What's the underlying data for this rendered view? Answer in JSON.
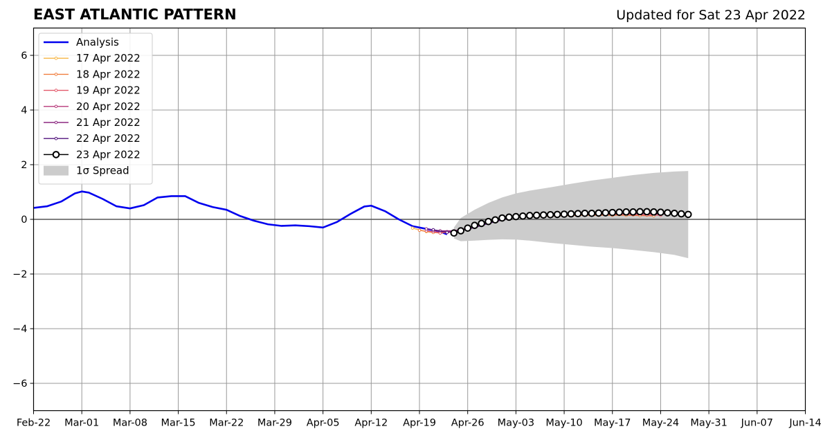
{
  "chart_data": {
    "type": "line",
    "title": "EAST ATLANTIC PATTERN",
    "subtitle": "Updated for Sat 23 Apr 2022",
    "xlabel": "",
    "ylabel": "",
    "ylim": [
      -7,
      7
    ],
    "xlim": [
      "2022-02-22",
      "2022-06-14"
    ],
    "grid": true,
    "legend_position": "top-left",
    "x_tick_labels": [
      "Feb-22",
      "Mar-01",
      "Mar-08",
      "Mar-15",
      "Mar-22",
      "Mar-29",
      "Apr-05",
      "Apr-12",
      "Apr-19",
      "Apr-26",
      "May-03",
      "May-10",
      "May-17",
      "May-24",
      "May-31",
      "Jun-07",
      "Jun-14"
    ],
    "x_tick_dates": [
      "2022-02-22",
      "2022-03-01",
      "2022-03-08",
      "2022-03-15",
      "2022-03-22",
      "2022-03-29",
      "2022-04-05",
      "2022-04-12",
      "2022-04-19",
      "2022-04-26",
      "2022-05-03",
      "2022-05-10",
      "2022-05-17",
      "2022-05-24",
      "2022-05-31",
      "2022-06-07",
      "2022-06-14"
    ],
    "y_ticks": [
      -6,
      -4,
      -2,
      0,
      2,
      4,
      6
    ],
    "y_tick_labels": [
      "−6",
      "−4",
      "−2",
      "0",
      "2",
      "4",
      "6"
    ],
    "analysis": {
      "name": "Analysis",
      "color": "#0000ee",
      "x": [
        "2022-02-22",
        "2022-02-24",
        "2022-02-26",
        "2022-02-28",
        "2022-03-01",
        "2022-03-02",
        "2022-03-04",
        "2022-03-06",
        "2022-03-08",
        "2022-03-10",
        "2022-03-12",
        "2022-03-14",
        "2022-03-16",
        "2022-03-18",
        "2022-03-20",
        "2022-03-22",
        "2022-03-24",
        "2022-03-26",
        "2022-03-28",
        "2022-03-30",
        "2022-04-01",
        "2022-04-03",
        "2022-04-05",
        "2022-04-07",
        "2022-04-09",
        "2022-04-11",
        "2022-04-12",
        "2022-04-14",
        "2022-04-16",
        "2022-04-18",
        "2022-04-20",
        "2022-04-22",
        "2022-04-23"
      ],
      "y": [
        0.42,
        0.48,
        0.65,
        0.95,
        1.02,
        0.98,
        0.75,
        0.48,
        0.4,
        0.52,
        0.8,
        0.85,
        0.85,
        0.6,
        0.45,
        0.35,
        0.12,
        -0.05,
        -0.18,
        -0.24,
        -0.22,
        -0.25,
        -0.3,
        -0.1,
        0.2,
        0.47,
        0.5,
        0.3,
        0.0,
        -0.25,
        -0.35,
        -0.45,
        -0.55
      ]
    },
    "forecasts": [
      {
        "name": "17 Apr 2022",
        "color": "#f7b543",
        "x": [
          "2022-04-18",
          "2022-04-20",
          "2022-04-22",
          "2022-04-24",
          "2022-04-26",
          "2022-04-28",
          "2022-04-30",
          "2022-05-02",
          "2022-05-04",
          "2022-05-06",
          "2022-05-08",
          "2022-05-10",
          "2022-05-12",
          "2022-05-14",
          "2022-05-16",
          "2022-05-18",
          "2022-05-20",
          "2022-05-22"
        ],
        "y": [
          -0.32,
          -0.45,
          -0.5,
          -0.45,
          -0.35,
          -0.2,
          -0.05,
          0.05,
          0.1,
          0.12,
          0.14,
          0.15,
          0.15,
          0.16,
          0.17,
          0.17,
          0.16,
          0.15
        ]
      },
      {
        "name": "18 Apr 2022",
        "color": "#f07e3f",
        "x": [
          "2022-04-19",
          "2022-04-21",
          "2022-04-23",
          "2022-04-25",
          "2022-04-27",
          "2022-04-29",
          "2022-05-01",
          "2022-05-03",
          "2022-05-05",
          "2022-05-07",
          "2022-05-09",
          "2022-05-11",
          "2022-05-13",
          "2022-05-15",
          "2022-05-17",
          "2022-05-19",
          "2022-05-21",
          "2022-05-23"
        ],
        "y": [
          -0.4,
          -0.48,
          -0.48,
          -0.4,
          -0.28,
          -0.12,
          0.0,
          0.07,
          0.1,
          0.12,
          0.13,
          0.14,
          0.15,
          0.15,
          0.15,
          0.15,
          0.14,
          0.13
        ]
      },
      {
        "name": "19 Apr 2022",
        "color": "#e3586a",
        "x": [
          "2022-04-20",
          "2022-04-22",
          "2022-04-24",
          "2022-04-26",
          "2022-04-28",
          "2022-04-30",
          "2022-05-02",
          "2022-05-04",
          "2022-05-06",
          "2022-05-08",
          "2022-05-10",
          "2022-05-12",
          "2022-05-14",
          "2022-05-16",
          "2022-05-18",
          "2022-05-20",
          "2022-05-22",
          "2022-05-24"
        ],
        "y": [
          -0.42,
          -0.5,
          -0.45,
          -0.33,
          -0.18,
          -0.05,
          0.05,
          0.1,
          0.13,
          0.15,
          0.16,
          0.17,
          0.18,
          0.18,
          0.18,
          0.17,
          0.16,
          0.15
        ]
      },
      {
        "name": "20 Apr 2022",
        "color": "#b73779",
        "x": [
          "2022-04-21",
          "2022-04-23",
          "2022-04-25",
          "2022-04-27",
          "2022-04-29",
          "2022-05-01",
          "2022-05-03",
          "2022-05-05",
          "2022-05-07",
          "2022-05-09",
          "2022-05-11",
          "2022-05-13",
          "2022-05-15",
          "2022-05-17",
          "2022-05-19",
          "2022-05-21",
          "2022-05-23",
          "2022-05-25"
        ],
        "y": [
          -0.42,
          -0.45,
          -0.38,
          -0.25,
          -0.1,
          0.02,
          0.1,
          0.14,
          0.17,
          0.19,
          0.2,
          0.21,
          0.22,
          0.22,
          0.22,
          0.21,
          0.2,
          0.19
        ]
      },
      {
        "name": "21 Apr 2022",
        "color": "#8c2981",
        "x": [
          "2022-04-20",
          "2022-04-22",
          "2022-04-24",
          "2022-04-26",
          "2022-04-28",
          "2022-04-30",
          "2022-05-02",
          "2022-05-04",
          "2022-05-06",
          "2022-05-08",
          "2022-05-10",
          "2022-05-12",
          "2022-05-14",
          "2022-05-16",
          "2022-05-18",
          "2022-05-20",
          "2022-05-22",
          "2022-05-24",
          "2022-05-26"
        ],
        "y": [
          -0.35,
          -0.42,
          -0.42,
          -0.32,
          -0.18,
          -0.05,
          0.05,
          0.12,
          0.16,
          0.19,
          0.21,
          0.22,
          0.23,
          0.24,
          0.24,
          0.24,
          0.23,
          0.22,
          0.21
        ]
      },
      {
        "name": "22 Apr 2022",
        "color": "#51127c",
        "x": [
          "2022-04-21",
          "2022-04-23",
          "2022-04-25",
          "2022-04-27",
          "2022-04-29",
          "2022-05-01",
          "2022-05-03",
          "2022-05-05",
          "2022-05-07",
          "2022-05-09",
          "2022-05-11",
          "2022-05-13",
          "2022-05-15",
          "2022-05-17",
          "2022-05-19",
          "2022-05-21",
          "2022-05-23",
          "2022-05-25",
          "2022-05-27"
        ],
        "y": [
          -0.38,
          -0.48,
          -0.42,
          -0.3,
          -0.15,
          -0.02,
          0.08,
          0.13,
          0.17,
          0.19,
          0.21,
          0.22,
          0.23,
          0.24,
          0.24,
          0.24,
          0.23,
          0.22,
          0.21
        ]
      },
      {
        "name": "23 Apr 2022",
        "color": "#000000",
        "marker": "open-circle",
        "x": [
          "2022-04-24",
          "2022-04-25",
          "2022-04-26",
          "2022-04-27",
          "2022-04-28",
          "2022-04-29",
          "2022-04-30",
          "2022-05-01",
          "2022-05-02",
          "2022-05-03",
          "2022-05-04",
          "2022-05-05",
          "2022-05-06",
          "2022-05-07",
          "2022-05-08",
          "2022-05-09",
          "2022-05-10",
          "2022-05-11",
          "2022-05-12",
          "2022-05-13",
          "2022-05-14",
          "2022-05-15",
          "2022-05-16",
          "2022-05-17",
          "2022-05-18",
          "2022-05-19",
          "2022-05-20",
          "2022-05-21",
          "2022-05-22",
          "2022-05-23",
          "2022-05-24",
          "2022-05-25",
          "2022-05-26",
          "2022-05-27",
          "2022-05-28"
        ],
        "y": [
          -0.5,
          -0.42,
          -0.32,
          -0.22,
          -0.15,
          -0.08,
          -0.02,
          0.05,
          0.08,
          0.1,
          0.12,
          0.14,
          0.15,
          0.16,
          0.17,
          0.18,
          0.19,
          0.2,
          0.21,
          0.22,
          0.22,
          0.23,
          0.24,
          0.25,
          0.26,
          0.27,
          0.27,
          0.28,
          0.28,
          0.27,
          0.26,
          0.24,
          0.22,
          0.2,
          0.18
        ]
      }
    ],
    "spread": {
      "name": "1σ Spread",
      "color": "#cccccc",
      "x": [
        "2022-04-24",
        "2022-04-25",
        "2022-04-27",
        "2022-04-29",
        "2022-05-01",
        "2022-05-03",
        "2022-05-05",
        "2022-05-08",
        "2022-05-11",
        "2022-05-14",
        "2022-05-17",
        "2022-05-20",
        "2022-05-23",
        "2022-05-26",
        "2022-05-28"
      ],
      "upper": [
        -0.3,
        0.05,
        0.35,
        0.6,
        0.8,
        0.95,
        1.05,
        1.17,
        1.3,
        1.42,
        1.52,
        1.62,
        1.7,
        1.75,
        1.77
      ],
      "lower": [
        -0.7,
        -0.8,
        -0.78,
        -0.75,
        -0.73,
        -0.74,
        -0.78,
        -0.86,
        -0.93,
        -1.0,
        -1.05,
        -1.12,
        -1.2,
        -1.3,
        -1.42
      ]
    }
  }
}
